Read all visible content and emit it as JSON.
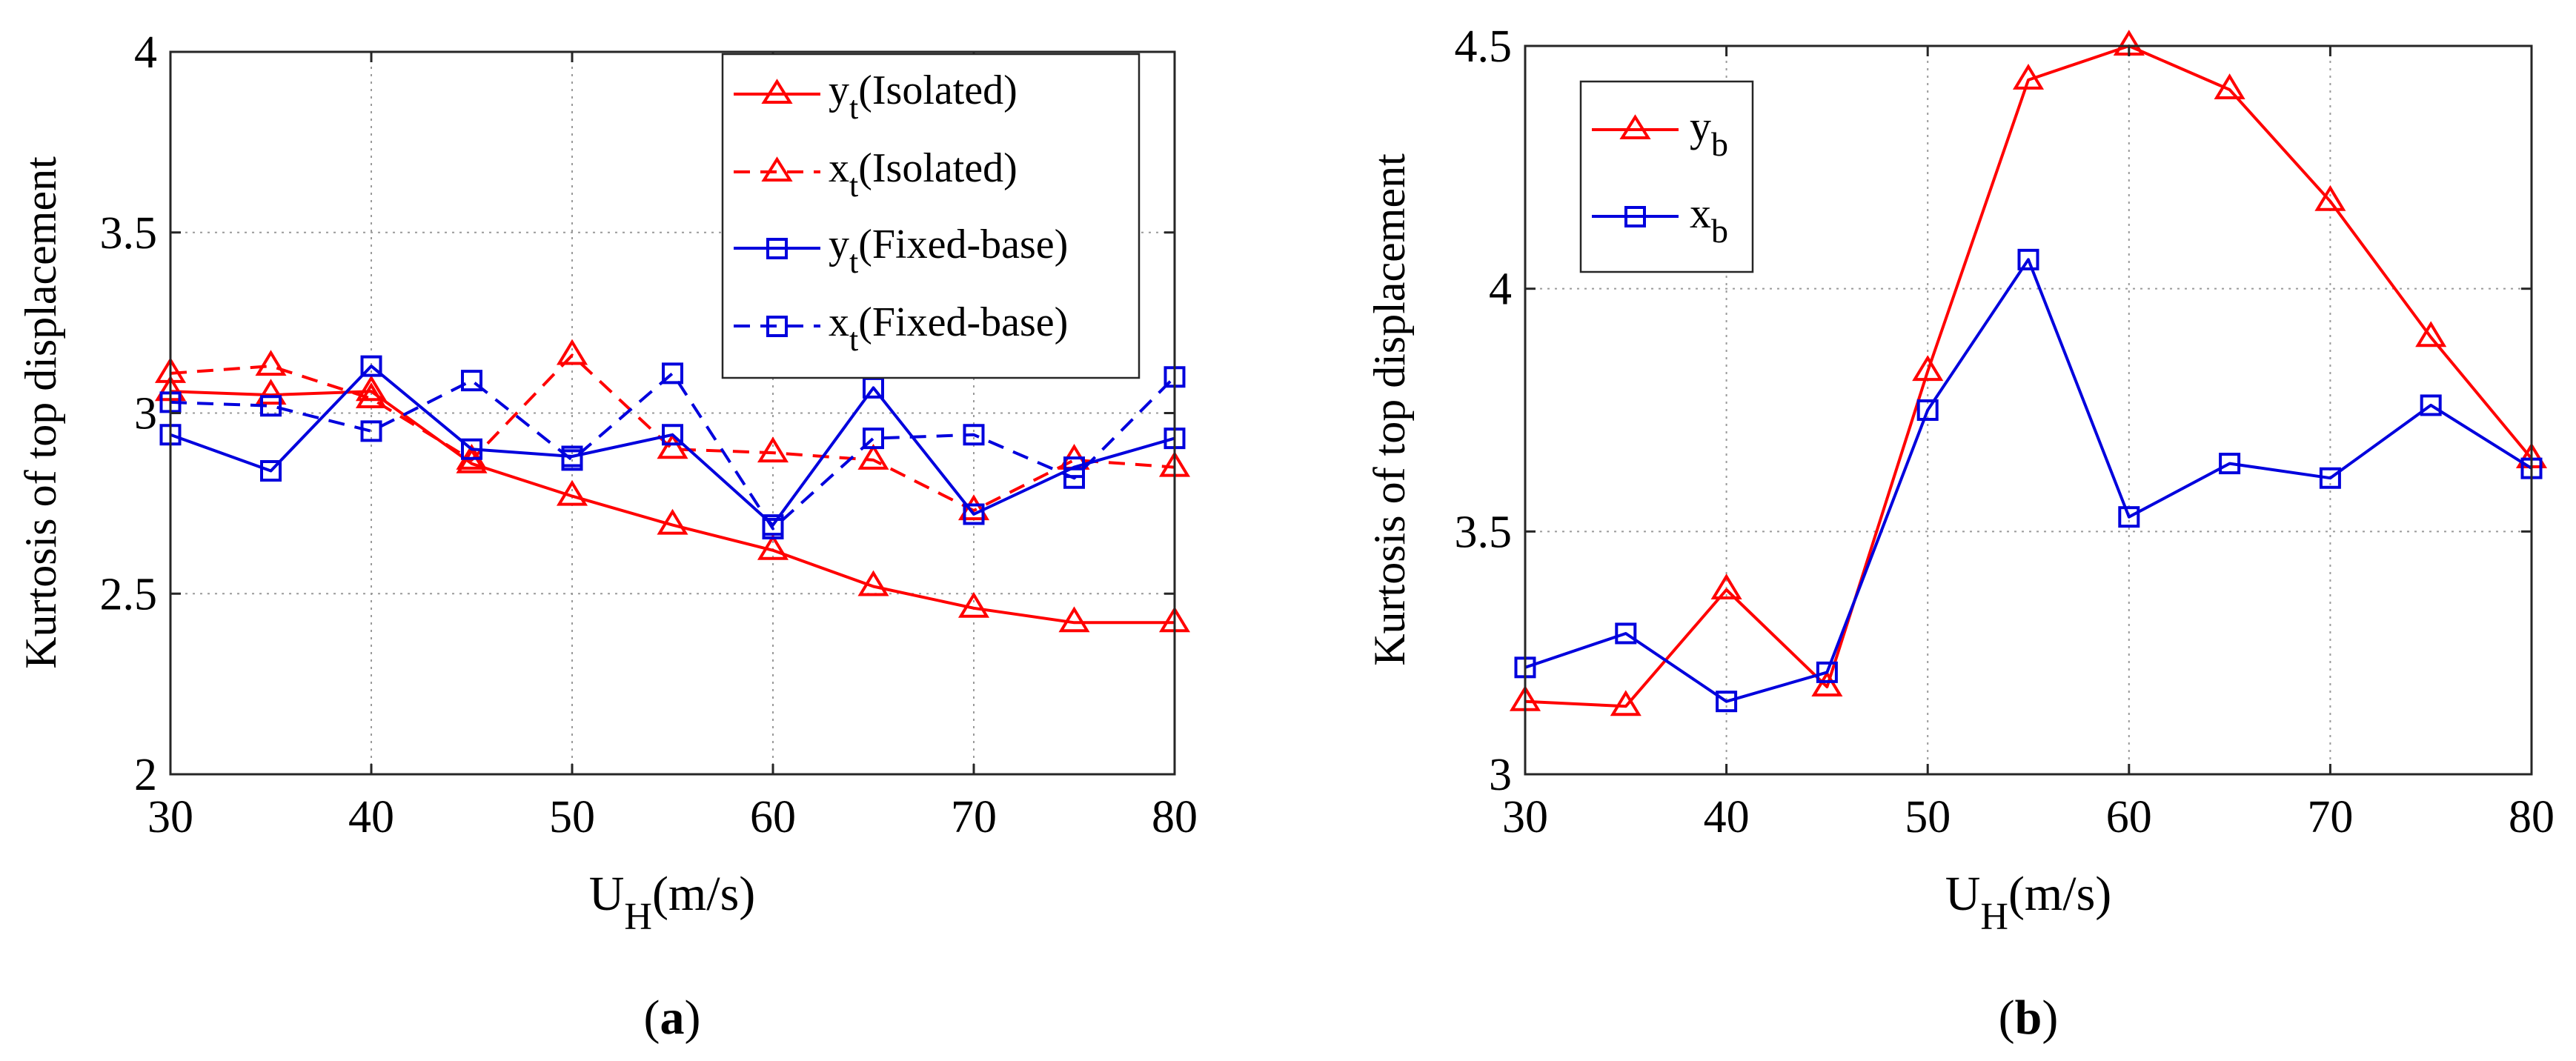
{
  "colors": {
    "red": "#ff0000",
    "blue": "#0000dd",
    "grid": "#9a9a9a",
    "axis": "#262626"
  },
  "panels": [
    {
      "caption": "a",
      "xlabel_main": "U",
      "xlabel_sub": "H",
      "xlabel_rest": "(m/s)",
      "ylabel": "Kurtosis of top displacement",
      "legend": [
        {
          "main": "y",
          "sub": "t",
          "rest": "(Isolated)"
        },
        {
          "main": "x",
          "sub": "t",
          "rest": "(Isolated)"
        },
        {
          "main": "y",
          "sub": "t",
          "rest": "(Fixed-base)"
        },
        {
          "main": "x",
          "sub": "t",
          "rest": "(Fixed-base)"
        }
      ]
    },
    {
      "caption": "b",
      "xlabel_main": "U",
      "xlabel_sub": "H",
      "xlabel_rest": "(m/s)",
      "ylabel": "Kurtosis of top displacement",
      "legend": [
        {
          "main": "y",
          "sub": "b",
          "rest": ""
        },
        {
          "main": "x",
          "sub": "b",
          "rest": ""
        }
      ]
    }
  ],
  "chart_data": [
    {
      "type": "line",
      "title": "(a)",
      "xlabel": "U_H(m/s)",
      "ylabel": "Kurtosis of top displacement",
      "xlim": [
        30,
        80
      ],
      "ylim": [
        2,
        4
      ],
      "xticks": [
        "30",
        "40",
        "50",
        "60",
        "70",
        "80"
      ],
      "yticks": [
        "2",
        "2.5",
        "3",
        "3.5",
        "4"
      ],
      "grid": true,
      "legend_position": "top-right",
      "x": [
        30,
        35,
        40,
        45,
        50,
        55,
        60,
        65,
        70,
        75,
        80
      ],
      "series": [
        {
          "name": "yt(Isolated)",
          "color": "#ff0000",
          "marker": "triangle",
          "dash": "solid",
          "values": [
            3.06,
            3.05,
            3.06,
            2.86,
            2.77,
            2.69,
            2.62,
            2.52,
            2.46,
            2.42,
            2.42
          ]
        },
        {
          "name": "xt(Isolated)",
          "color": "#ff0000",
          "marker": "triangle",
          "dash": "dashed",
          "values": [
            3.11,
            3.13,
            3.04,
            2.87,
            3.16,
            2.9,
            2.89,
            2.87,
            2.73,
            2.87,
            2.85
          ]
        },
        {
          "name": "yt(Fixed-base)",
          "color": "#0000dd",
          "marker": "square",
          "dash": "solid",
          "values": [
            2.94,
            2.84,
            3.13,
            2.9,
            2.88,
            2.94,
            2.69,
            3.07,
            2.72,
            2.85,
            2.93
          ]
        },
        {
          "name": "xt(Fixed-base)",
          "color": "#0000dd",
          "marker": "square",
          "dash": "dashed",
          "values": [
            3.03,
            3.02,
            2.95,
            3.09,
            2.87,
            3.11,
            2.68,
            2.93,
            2.94,
            2.82,
            3.1
          ]
        }
      ]
    },
    {
      "type": "line",
      "title": "(b)",
      "xlabel": "U_H(m/s)",
      "ylabel": "Kurtosis of top displacement",
      "xlim": [
        30,
        80
      ],
      "ylim": [
        3,
        4.5
      ],
      "xticks": [
        "30",
        "40",
        "50",
        "60",
        "70",
        "80"
      ],
      "yticks": [
        "3",
        "3.5",
        "4",
        "4.5"
      ],
      "grid": true,
      "legend_position": "top-left",
      "x": [
        30,
        35,
        40,
        45,
        50,
        55,
        60,
        65,
        70,
        75,
        80
      ],
      "series": [
        {
          "name": "yb",
          "color": "#ff0000",
          "marker": "triangle",
          "dash": "solid",
          "values": [
            3.15,
            3.14,
            3.38,
            3.18,
            3.83,
            4.43,
            4.5,
            4.41,
            4.18,
            3.9,
            3.65
          ]
        },
        {
          "name": "xb",
          "color": "#0000dd",
          "marker": "square",
          "dash": "solid",
          "values": [
            3.22,
            3.29,
            3.15,
            3.21,
            3.75,
            4.06,
            3.53,
            3.64,
            3.61,
            3.76,
            3.63
          ]
        }
      ]
    }
  ]
}
